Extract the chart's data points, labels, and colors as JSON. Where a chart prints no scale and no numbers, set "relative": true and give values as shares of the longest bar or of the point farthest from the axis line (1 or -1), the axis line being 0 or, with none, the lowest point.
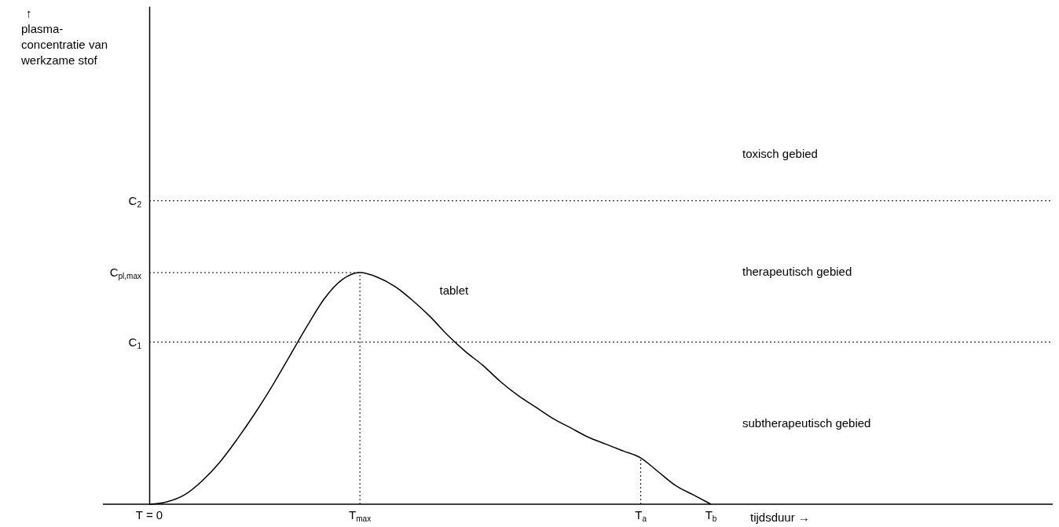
{
  "chart_data": {
    "type": "line",
    "relative": true,
    "xlabel": "tijdsduur →",
    "categories": [
      "T = 0",
      null,
      null,
      null,
      null,
      null,
      null,
      null,
      null,
      null,
      null,
      null,
      "T$_{max}$",
      null,
      null,
      null,
      null,
      null,
      null,
      null,
      null,
      null,
      null,
      null,
      null,
      null,
      null,
      null,
      "T$_{a}$",
      null,
      null,
      null,
      "T$_{b}$"
    ],
    "series": [
      {
        "name": "tablet",
        "color": "#000000",
        "values": [
          0,
          0.01,
          0.04,
          0.1,
          0.18,
          0.28,
          0.39,
          0.51,
          0.64,
          0.77,
          0.89,
          0.97,
          1,
          0.98,
          0.94,
          0.88,
          0.81,
          0.73,
          0.66,
          0.6,
          0.53,
          0.47,
          0.42,
          0.37,
          0.33,
          0.29,
          0.26,
          0.23,
          0.2,
          0.14,
          0.08,
          0.04,
          0
        ]
      },
      {
        "x": [
          "T$_{max}$",
          "T$_{max}$"
        ],
        "color": "#000000",
        "line_style": "dotted",
        "values": [
          0,
          1
        ]
      },
      {
        "x": [
          "T$_{a}$",
          "T$_{a}$"
        ],
        "color": "#000000",
        "line_style": "dotted",
        "values": [
          0,
          0.2
        ]
      }
    ],
    "line_style": "solid",
    "ref_lines": [
      {
        "axis": "y",
        "value": 1.31,
        "label": "C$_{2}$",
        "line_style": "dotted"
      },
      {
        "axis": "y",
        "value": 0.7,
        "label": "C$_{1}$",
        "line_style": "dotted"
      }
    ],
    "annotations": [
      "↑\nplasma-\nconcentratie van\nwerkzame stof",
      {
        "text": "C$_{pl,max}$",
        "x": "T$_{max}$",
        "y": 1
      },
      "toxisch gebied",
      "therapeutisch gebied",
      "subtherapeutisch gebied"
    ]
  }
}
